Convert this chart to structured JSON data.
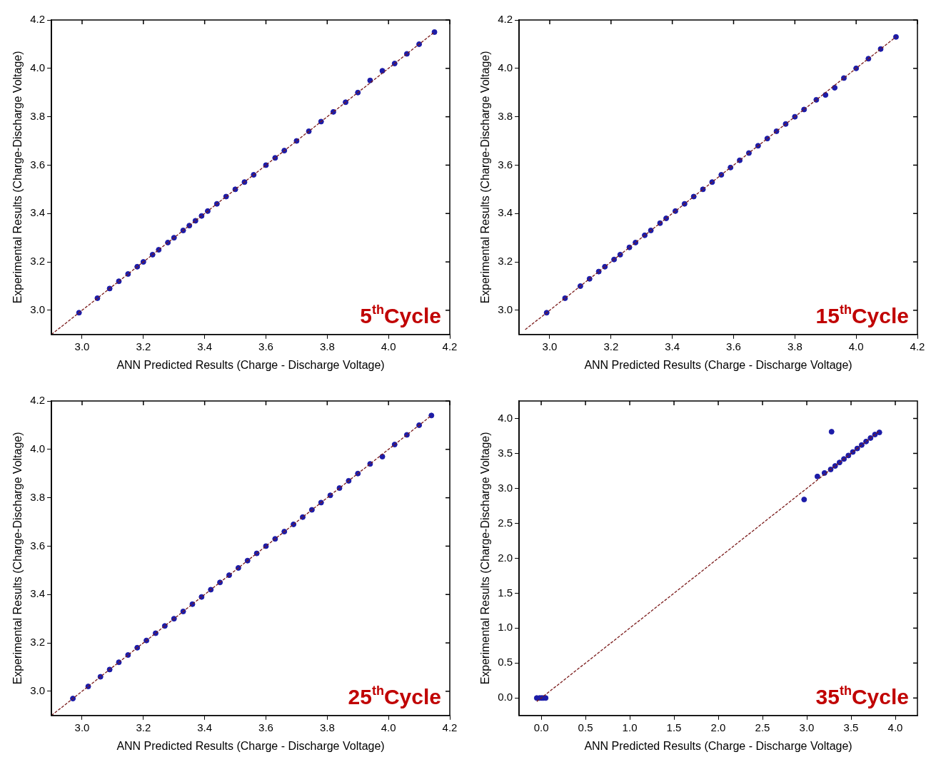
{
  "chart_data": [
    {
      "type": "scatter",
      "xlabel": "ANN Predicted Results (Charge - Discharge Voltage)",
      "ylabel": "Experimental Results (Charge-Discharge Voltage)",
      "xlim": [
        2.9,
        4.2
      ],
      "ylim": [
        2.9,
        4.2
      ],
      "xticks": [
        {
          "value": 3,
          "label": "3.0"
        },
        3.2,
        3.4,
        3.6,
        3.8,
        {
          "value": 4,
          "label": "4.0"
        },
        4.2
      ],
      "yticks": [
        {
          "value": 3,
          "label": "3.0"
        },
        3.2,
        3.4,
        3.6,
        3.8,
        {
          "value": 4,
          "label": "4.0"
        },
        4.2
      ],
      "annotations": [
        "5$^{th}$Cycle"
      ],
      "series": [
        {
          "type": "scatter",
          "color": "#1c1ca8",
          "marker": "circle",
          "x": [
            2.99,
            3.05,
            3.09,
            3.12,
            3.15,
            3.18,
            3.2,
            3.23,
            3.25,
            3.28,
            3.3,
            3.33,
            3.35,
            3.37,
            3.39,
            3.41,
            3.44,
            3.47,
            3.5,
            3.53,
            3.56,
            3.6,
            3.63,
            3.66,
            3.7,
            3.74,
            3.78,
            3.82,
            3.86,
            3.9,
            3.94,
            3.98,
            4.02,
            4.06,
            4.1,
            4.15
          ],
          "values": [
            2.99,
            3.05,
            3.09,
            3.12,
            3.15,
            3.18,
            3.2,
            3.23,
            3.25,
            3.28,
            3.3,
            3.33,
            3.35,
            3.37,
            3.39,
            3.41,
            3.44,
            3.47,
            3.5,
            3.53,
            3.56,
            3.6,
            3.63,
            3.66,
            3.7,
            3.74,
            3.78,
            3.82,
            3.86,
            3.9,
            3.95,
            3.99,
            4.02,
            4.06,
            4.1,
            4.15
          ]
        },
        {
          "type": "line",
          "color": "#7a1a1a",
          "marker": "none",
          "line_style": "dashed",
          "x": [
            2.9,
            4.15
          ],
          "values": [
            2.9,
            4.15
          ]
        }
      ]
    },
    {
      "type": "scatter",
      "xlabel": "ANN Predicted Results (Charge - Discharge Voltage)",
      "ylabel": "Experimental Results (Charge-Discharge Voltage)",
      "xlim": [
        2.9,
        4.2
      ],
      "ylim": [
        2.9,
        4.2
      ],
      "xticks": [
        {
          "value": 3,
          "label": "3.0"
        },
        3.2,
        3.4,
        3.6,
        3.8,
        {
          "value": 4,
          "label": "4.0"
        },
        4.2
      ],
      "yticks": [
        {
          "value": 3,
          "label": "3.0"
        },
        3.2,
        3.4,
        3.6,
        3.8,
        {
          "value": 4,
          "label": "4.0"
        },
        4.2
      ],
      "annotations": [
        "15$^{th}$Cycle"
      ],
      "series": [
        {
          "type": "scatter",
          "color": "#1c1ca8",
          "marker": "circle",
          "x": [
            2.99,
            3.05,
            3.1,
            3.13,
            3.16,
            3.18,
            3.21,
            3.23,
            3.26,
            3.28,
            3.31,
            3.33,
            3.36,
            3.38,
            3.41,
            3.44,
            3.47,
            3.5,
            3.53,
            3.56,
            3.59,
            3.62,
            3.65,
            3.68,
            3.71,
            3.74,
            3.77,
            3.8,
            3.83,
            3.87,
            3.9,
            3.93,
            3.96,
            4.0,
            4.04,
            4.08,
            4.13
          ],
          "values": [
            2.99,
            3.05,
            3.1,
            3.13,
            3.16,
            3.18,
            3.21,
            3.23,
            3.26,
            3.28,
            3.31,
            3.33,
            3.36,
            3.38,
            3.41,
            3.44,
            3.47,
            3.5,
            3.53,
            3.56,
            3.59,
            3.62,
            3.65,
            3.68,
            3.71,
            3.74,
            3.77,
            3.8,
            3.83,
            3.87,
            3.89,
            3.92,
            3.96,
            4.0,
            4.04,
            4.08,
            4.13
          ]
        },
        {
          "type": "line",
          "color": "#7a1a1a",
          "marker": "none",
          "line_style": "dashed",
          "x": [
            2.92,
            4.13
          ],
          "values": [
            2.92,
            4.13
          ]
        }
      ]
    },
    {
      "type": "scatter",
      "xlabel": "ANN Predicted Results (Charge - Discharge Voltage)",
      "ylabel": "Experimental Results (Charge-Discharge Voltage)",
      "xlim": [
        2.9,
        4.2
      ],
      "ylim": [
        2.9,
        4.2
      ],
      "xticks": [
        {
          "value": 3,
          "label": "3.0"
        },
        3.2,
        3.4,
        3.6,
        3.8,
        {
          "value": 4,
          "label": "4.0"
        },
        4.2
      ],
      "yticks": [
        {
          "value": 3,
          "label": "3.0"
        },
        3.2,
        3.4,
        3.6,
        3.8,
        {
          "value": 4,
          "label": "4.0"
        },
        4.2
      ],
      "annotations": [
        "25$^{th}$Cycle"
      ],
      "series": [
        {
          "type": "scatter",
          "color": "#1c1ca8",
          "marker": "circle",
          "x": [
            2.97,
            3.02,
            3.06,
            3.09,
            3.12,
            3.15,
            3.18,
            3.21,
            3.24,
            3.27,
            3.3,
            3.33,
            3.36,
            3.39,
            3.42,
            3.45,
            3.48,
            3.51,
            3.54,
            3.57,
            3.6,
            3.63,
            3.66,
            3.69,
            3.72,
            3.75,
            3.78,
            3.81,
            3.84,
            3.87,
            3.9,
            3.94,
            3.98,
            4.02,
            4.06,
            4.1,
            4.14
          ],
          "values": [
            2.97,
            3.02,
            3.06,
            3.09,
            3.12,
            3.15,
            3.18,
            3.21,
            3.24,
            3.27,
            3.3,
            3.33,
            3.36,
            3.39,
            3.42,
            3.45,
            3.48,
            3.51,
            3.54,
            3.57,
            3.6,
            3.63,
            3.66,
            3.69,
            3.72,
            3.75,
            3.78,
            3.81,
            3.84,
            3.87,
            3.9,
            3.94,
            3.97,
            4.02,
            4.06,
            4.1,
            4.14
          ]
        },
        {
          "type": "line",
          "color": "#7a1a1a",
          "marker": "none",
          "line_style": "dashed",
          "x": [
            2.9,
            4.14
          ],
          "values": [
            2.9,
            4.14
          ]
        }
      ]
    },
    {
      "type": "scatter",
      "xlabel": "ANN Predicted Results (Charge - Discharge Voltage)",
      "ylabel": "Experimental Results (Charge-Discharge Voltage)",
      "xlim": [
        -0.25,
        4.25
      ],
      "ylim": [
        -0.25,
        4.25
      ],
      "xticks": [
        {
          "value": 0,
          "label": "0.0"
        },
        0.5,
        {
          "value": 1,
          "label": "1.0"
        },
        1.5,
        {
          "value": 2,
          "label": "2.0"
        },
        2.5,
        {
          "value": 3,
          "label": "3.0"
        },
        3.5,
        {
          "value": 4,
          "label": "4.0"
        }
      ],
      "yticks": [
        {
          "value": 0,
          "label": "0.0"
        },
        0.5,
        {
          "value": 1,
          "label": "1.0"
        },
        1.5,
        {
          "value": 2,
          "label": "2.0"
        },
        2.5,
        {
          "value": 3,
          "label": "3.0"
        },
        3.5,
        {
          "value": 4,
          "label": "4.0"
        }
      ],
      "annotations": [
        "35$^{th}$Cycle"
      ],
      "series": [
        {
          "type": "scatter",
          "color": "#1c1ca8",
          "marker": "circle",
          "x": [
            -0.05,
            -0.02,
            0.0,
            0.02,
            0.05,
            2.97,
            3.12,
            3.2,
            3.28,
            3.27,
            3.32,
            3.37,
            3.42,
            3.47,
            3.52,
            3.57,
            3.62,
            3.67,
            3.72,
            3.77,
            3.82
          ],
          "values": [
            0,
            0,
            0,
            0,
            0,
            2.84,
            3.17,
            3.22,
            3.81,
            3.27,
            3.32,
            3.37,
            3.42,
            3.47,
            3.52,
            3.57,
            3.62,
            3.67,
            3.72,
            3.77,
            3.8
          ]
        },
        {
          "type": "line",
          "color": "#7a1a1a",
          "marker": "none",
          "line_style": "dashed",
          "x": [
            -0.05,
            3.82
          ],
          "values": [
            -0.05,
            3.82
          ]
        }
      ]
    }
  ]
}
